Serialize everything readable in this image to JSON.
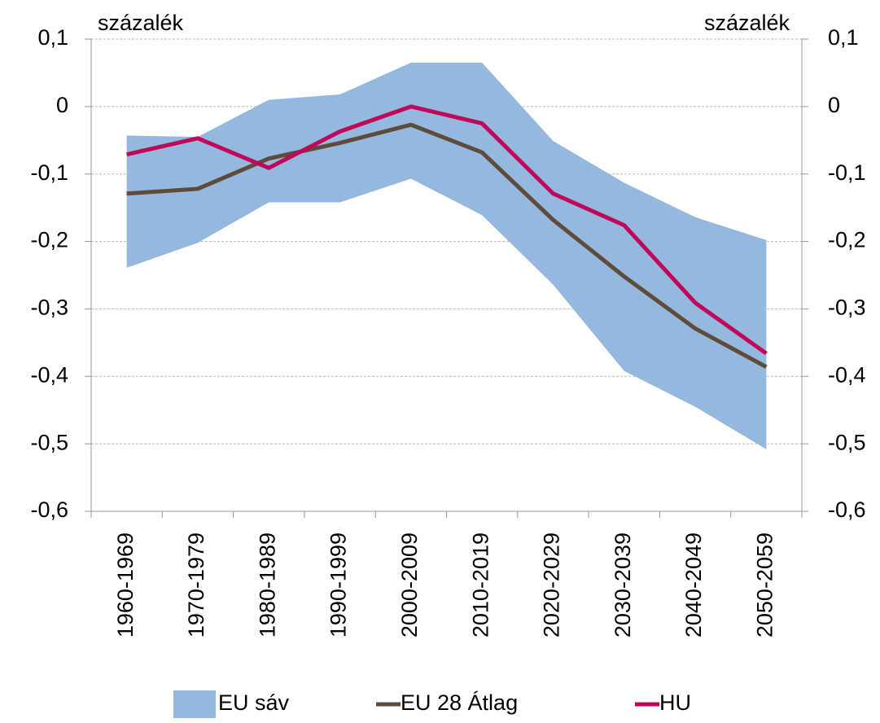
{
  "chart_data": {
    "type": "line",
    "y_label": "százalék",
    "y2_label": "százalék",
    "categories": [
      "1960-1969",
      "1970-1979",
      "1980-1989",
      "1990-1999",
      "2000-2009",
      "2010-2019",
      "2020-2029",
      "2030-2039",
      "2040-2049",
      "2050-2059"
    ],
    "band": {
      "name": "EU sáv",
      "color": "#95b8df",
      "low": [
        -0.239,
        -0.202,
        -0.142,
        -0.142,
        -0.107,
        -0.161,
        -0.264,
        -0.392,
        -0.445,
        -0.508
      ],
      "high": [
        -0.043,
        -0.045,
        0.01,
        0.018,
        0.065,
        0.065,
        -0.051,
        -0.113,
        -0.164,
        -0.198
      ]
    },
    "series": [
      {
        "name": "EU 28 Átlag",
        "color": "#5f4b3b",
        "values": [
          -0.129,
          -0.122,
          -0.077,
          -0.054,
          -0.027,
          -0.068,
          -0.168,
          -0.252,
          -0.329,
          -0.386
        ]
      },
      {
        "name": "HU",
        "color": "#c0075a",
        "values": [
          -0.071,
          -0.047,
          -0.091,
          -0.037,
          0,
          -0.025,
          -0.129,
          -0.176,
          -0.291,
          -0.366
        ]
      }
    ],
    "ylim": [
      -0.6,
      0.1
    ],
    "yticks": [
      {
        "value": -0.6,
        "label": "-0,6"
      },
      {
        "value": -0.5,
        "label": "-0,5"
      },
      {
        "value": -0.4,
        "label": "-0,4"
      },
      {
        "value": -0.3,
        "label": "-0,3"
      },
      {
        "value": -0.2,
        "label": "-0,2"
      },
      {
        "value": -0.1,
        "label": "-0,1"
      },
      0,
      {
        "value": 0.1,
        "label": "0,1"
      }
    ],
    "y2lim": [
      -0.6,
      0.1
    ],
    "y2ticks": [
      {
        "value": -0.6,
        "label": "-0,6"
      },
      {
        "value": -0.5,
        "label": "-0,5"
      },
      {
        "value": -0.4,
        "label": "-0,4"
      },
      {
        "value": -0.3,
        "label": "-0,3"
      },
      {
        "value": -0.2,
        "label": "-0,2"
      },
      {
        "value": -0.1,
        "label": "-0,1"
      },
      0,
      {
        "value": 0.1,
        "label": "0,1"
      }
    ],
    "grid": true,
    "legend": "bottom"
  }
}
